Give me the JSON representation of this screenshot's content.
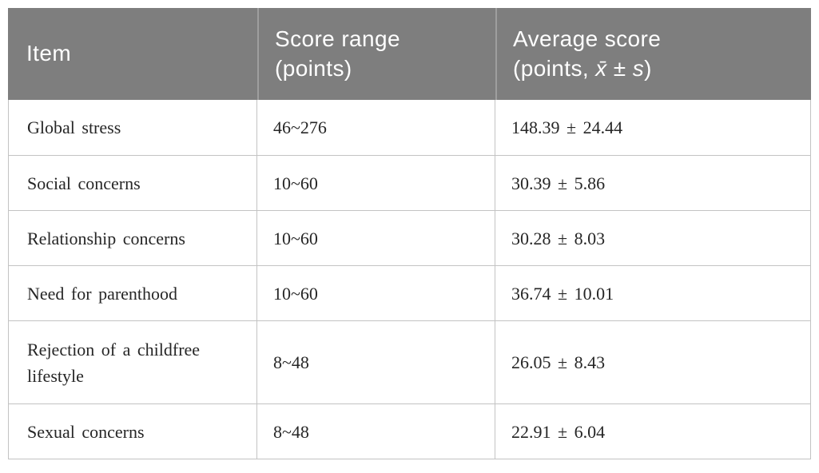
{
  "table": {
    "header": {
      "item": "Item",
      "score_range": "Score range (points)",
      "average_prefix": "Average score (points, ",
      "average_xbar": "x̄",
      "average_pm": " ± ",
      "average_s": "s",
      "average_suffix": ")"
    },
    "rows": [
      {
        "item": "Global stress",
        "score_range": "46~276",
        "average": "148.39 ± 24.44"
      },
      {
        "item": "Social concerns",
        "score_range": "10~60",
        "average": "30.39 ± 5.86"
      },
      {
        "item": "Relationship concerns",
        "score_range": "10~60",
        "average": "30.28 ± 8.03"
      },
      {
        "item": "Need for parenthood",
        "score_range": "10~60",
        "average": "36.74 ± 10.01"
      },
      {
        "item": "Rejection of a childfree lifestyle",
        "score_range": "8~48",
        "average": "26.05 ± 8.43"
      },
      {
        "item": "Sexual concerns",
        "score_range": "8~48",
        "average": "22.91 ± 6.04"
      }
    ]
  },
  "colors": {
    "header_bg": "#7e7e7e",
    "header_text": "#ffffff",
    "header_divider": "#9e9e9e",
    "grid_line": "#c3c3c3",
    "body_text": "#262626",
    "page_bg": "#ffffff"
  }
}
